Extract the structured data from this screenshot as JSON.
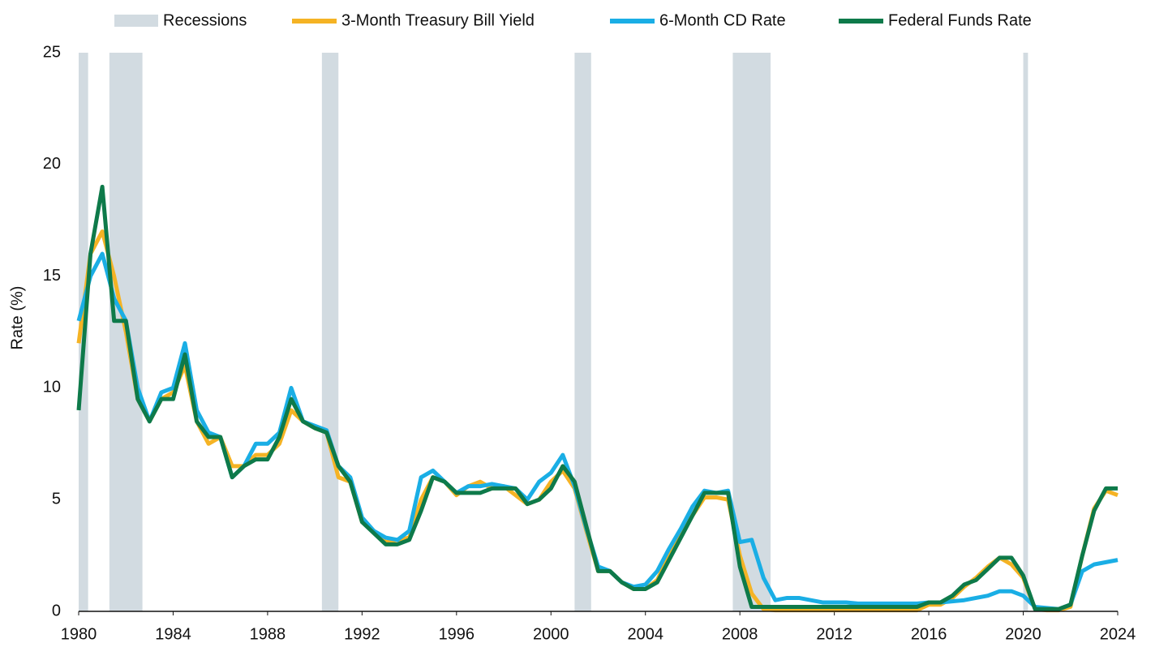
{
  "chart_data": {
    "type": "line",
    "y_label": "Rate (%)",
    "xlim": [
      1980,
      2024
    ],
    "xticks": [
      1980,
      1984,
      1988,
      1992,
      1996,
      2000,
      2004,
      2008,
      2012,
      2016,
      2020,
      2024
    ],
    "ylim": [
      0,
      25
    ],
    "yticks": [
      0,
      5,
      10,
      15,
      20,
      25
    ],
    "recessions": {
      "name": "Recessions",
      "color": "#d2dbe1",
      "periods": [
        [
          1980.0,
          1980.4
        ],
        [
          1981.3,
          1982.7
        ],
        [
          1990.3,
          1991.0
        ],
        [
          2001.0,
          2001.7
        ],
        [
          2007.7,
          2009.3
        ],
        [
          2020.0,
          2020.2
        ]
      ]
    },
    "x": [
      1980,
      1980.5,
      1981,
      1981.5,
      1982,
      1982.5,
      1983,
      1983.5,
      1984,
      1984.5,
      1985,
      1985.5,
      1986,
      1986.5,
      1987,
      1987.5,
      1988,
      1988.5,
      1989,
      1989.5,
      1990,
      1990.5,
      1991,
      1991.5,
      1992,
      1992.5,
      1993,
      1993.5,
      1994,
      1994.5,
      1995,
      1995.5,
      1996,
      1996.5,
      1997,
      1997.5,
      1998,
      1998.5,
      1999,
      1999.5,
      2000,
      2000.5,
      2001,
      2001.5,
      2002,
      2002.5,
      2003,
      2003.5,
      2004,
      2004.5,
      2005,
      2005.5,
      2006,
      2006.5,
      2007,
      2007.5,
      2008,
      2008.5,
      2009,
      2009.5,
      2010,
      2010.5,
      2011,
      2011.5,
      2012,
      2012.5,
      2013,
      2013.5,
      2014,
      2014.5,
      2015,
      2015.5,
      2016,
      2016.5,
      2017,
      2017.5,
      2018,
      2018.5,
      2019,
      2019.5,
      2020,
      2020.5,
      2021,
      2021.5,
      2022,
      2022.5,
      2023,
      2023.5,
      2024
    ],
    "series": [
      {
        "name": "3-Month Treasury Bill Yield",
        "color": "#f5b324",
        "values": [
          12,
          16,
          17,
          15,
          12.5,
          9.5,
          8.5,
          9.5,
          9.8,
          11,
          8.5,
          7.5,
          7.8,
          6.5,
          6.5,
          7.0,
          7.0,
          7.5,
          9.0,
          8.5,
          8.2,
          8.0,
          6.0,
          5.8,
          4.0,
          3.6,
          3.1,
          3.2,
          3.3,
          5.0,
          6.0,
          5.8,
          5.2,
          5.6,
          5.8,
          5.5,
          5.6,
          5.2,
          4.8,
          5.0,
          5.8,
          6.3,
          5.5,
          3.6,
          1.8,
          1.8,
          1.3,
          1.0,
          1.0,
          1.4,
          2.5,
          3.4,
          4.3,
          5.1,
          5.1,
          5.0,
          2.5,
          0.8,
          0.1,
          0.05,
          0.05,
          0.05,
          0.05,
          0.05,
          0.05,
          0.05,
          0.05,
          0.05,
          0.05,
          0.05,
          0.05,
          0.05,
          0.3,
          0.3,
          0.6,
          1.1,
          1.5,
          2.0,
          2.4,
          2.1,
          1.5,
          0.1,
          0.05,
          0.05,
          0.2,
          2.5,
          4.6,
          5.4,
          5.2
        ]
      },
      {
        "name": "6-Month CD Rate",
        "color": "#1aaee5",
        "values": [
          13,
          15,
          16,
          14,
          13,
          10,
          8.5,
          9.8,
          10,
          12,
          9,
          8,
          7.8,
          6,
          6.5,
          7.5,
          7.5,
          8,
          10,
          8.5,
          8.3,
          8.1,
          6.5,
          6,
          4.2,
          3.6,
          3.3,
          3.2,
          3.6,
          6.0,
          6.3,
          5.8,
          5.3,
          5.6,
          5.6,
          5.7,
          5.6,
          5.5,
          5.0,
          5.8,
          6.2,
          7.0,
          5.6,
          3.7,
          2.0,
          1.8,
          1.3,
          1.1,
          1.2,
          1.8,
          2.8,
          3.7,
          4.7,
          5.4,
          5.3,
          5.4,
          3.1,
          3.2,
          1.5,
          0.5,
          0.6,
          0.6,
          0.5,
          0.4,
          0.4,
          0.4,
          0.35,
          0.35,
          0.35,
          0.35,
          0.35,
          0.35,
          0.4,
          0.4,
          0.45,
          0.5,
          0.6,
          0.7,
          0.9,
          0.9,
          0.7,
          0.2,
          0.15,
          0.1,
          0.3,
          1.8,
          2.1,
          2.2,
          2.3
        ]
      },
      {
        "name": "Federal Funds Rate",
        "color": "#0e7a4a",
        "values": [
          9,
          16,
          19,
          13,
          13,
          9.5,
          8.5,
          9.5,
          9.5,
          11.5,
          8.5,
          7.8,
          7.8,
          6.0,
          6.5,
          6.8,
          6.8,
          7.8,
          9.5,
          8.5,
          8.2,
          8.0,
          6.5,
          5.8,
          4.0,
          3.5,
          3.0,
          3.0,
          3.2,
          4.5,
          6.0,
          5.8,
          5.3,
          5.3,
          5.3,
          5.5,
          5.5,
          5.5,
          4.8,
          5.0,
          5.5,
          6.5,
          5.8,
          3.8,
          1.8,
          1.8,
          1.3,
          1.0,
          1.0,
          1.3,
          2.3,
          3.3,
          4.3,
          5.3,
          5.3,
          5.3,
          2.0,
          0.2,
          0.2,
          0.2,
          0.2,
          0.2,
          0.2,
          0.2,
          0.2,
          0.2,
          0.2,
          0.2,
          0.2,
          0.2,
          0.2,
          0.2,
          0.4,
          0.4,
          0.7,
          1.2,
          1.4,
          1.9,
          2.4,
          2.4,
          1.6,
          0.1,
          0.1,
          0.1,
          0.3,
          2.5,
          4.5,
          5.5,
          5.5
        ]
      }
    ]
  }
}
